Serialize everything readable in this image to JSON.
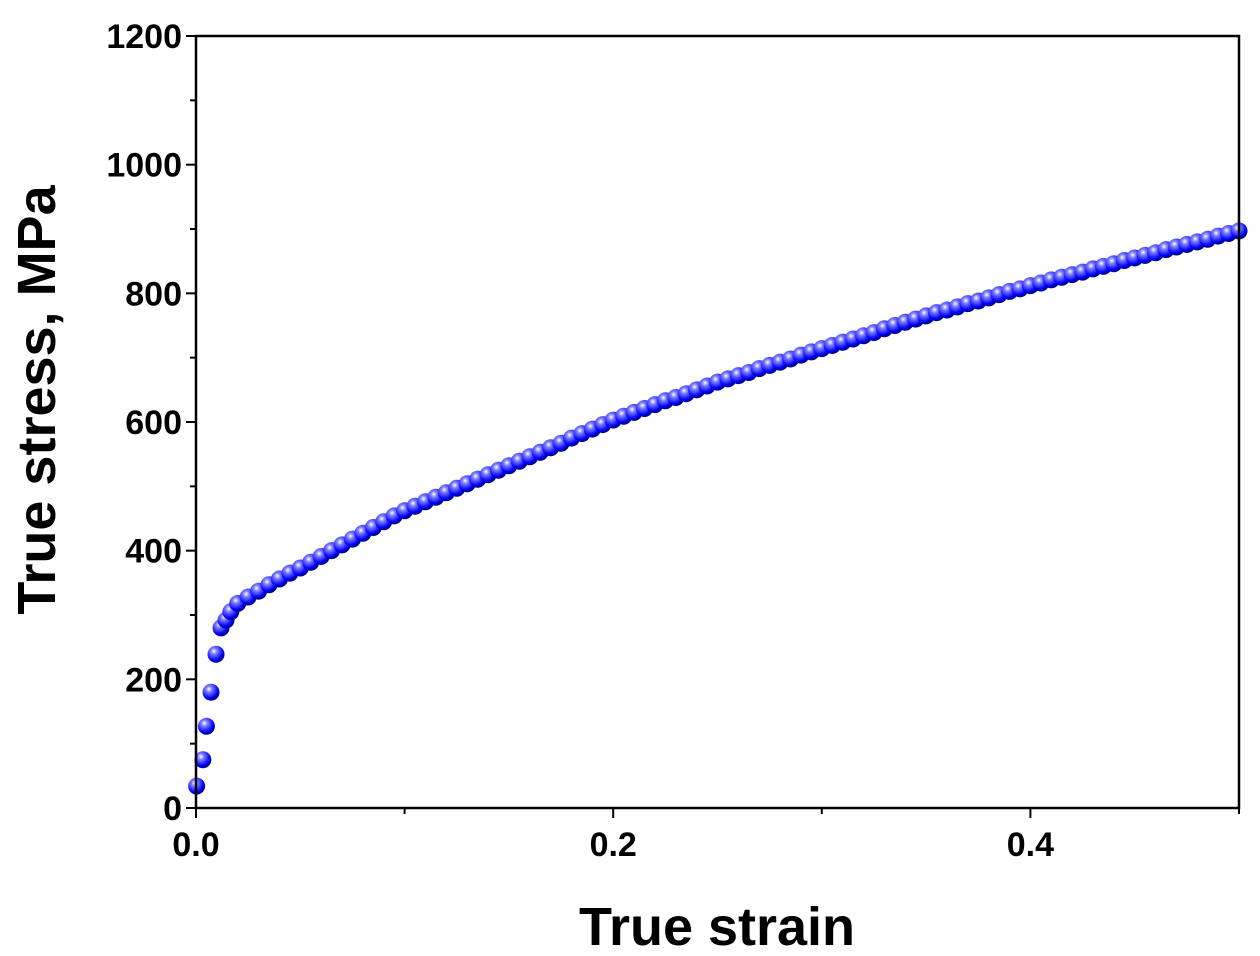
{
  "chart_data": {
    "type": "scatter",
    "xlabel": "True strain",
    "ylabel": "True stress, MPa",
    "xlim": [
      0,
      0.5
    ],
    "ylim": [
      0,
      1200
    ],
    "xticks": [
      {
        "value": 0,
        "label": "0.0"
      },
      0.2,
      0.4
    ],
    "xminorticks": [
      0.1,
      0.3,
      0.5
    ],
    "yticks": [
      0,
      200,
      400,
      600,
      800,
      1000,
      1200
    ],
    "yminorticks": [
      100,
      300,
      500,
      700,
      900,
      1100
    ],
    "series": [
      {
        "color": "#0000ff",
        "x": [
          0.0003,
          0.0033,
          0.005,
          0.0072,
          0.0096,
          0.012,
          0.0144,
          0.0167,
          0.02,
          0.025,
          0.03,
          0.035,
          0.04,
          0.045,
          0.05,
          0.055,
          0.06,
          0.065,
          0.07,
          0.075,
          0.08,
          0.085,
          0.09,
          0.095,
          0.1,
          0.105,
          0.11,
          0.115,
          0.12,
          0.125,
          0.13,
          0.135,
          0.14,
          0.145,
          0.15,
          0.155,
          0.16,
          0.165,
          0.17,
          0.175,
          0.18,
          0.185,
          0.19,
          0.195,
          0.2,
          0.205,
          0.21,
          0.215,
          0.22,
          0.225,
          0.23,
          0.235,
          0.24,
          0.245,
          0.25,
          0.255,
          0.26,
          0.265,
          0.27,
          0.275,
          0.28,
          0.285,
          0.29,
          0.295,
          0.3,
          0.305,
          0.31,
          0.315,
          0.32,
          0.325,
          0.33,
          0.335,
          0.34,
          0.345,
          0.35,
          0.355,
          0.36,
          0.365,
          0.37,
          0.375,
          0.38,
          0.385,
          0.39,
          0.395,
          0.4,
          0.405,
          0.41,
          0.415,
          0.42,
          0.425,
          0.43,
          0.435,
          0.44,
          0.445,
          0.45,
          0.455,
          0.46,
          0.465,
          0.47,
          0.475,
          0.48,
          0.485,
          0.49,
          0.495,
          0.5
        ],
        "values": [
          34,
          75,
          127,
          180,
          239,
          280,
          292,
          305,
          318,
          328,
          337,
          347,
          356,
          365,
          373,
          382,
          391,
          400,
          409,
          418,
          427,
          436,
          445,
          454,
          462,
          469,
          476,
          483,
          490,
          497,
          504,
          511,
          518,
          525,
          532,
          539,
          546,
          553,
          560,
          567,
          575,
          582,
          589,
          596,
          603,
          609,
          615,
          621,
          627,
          633,
          638,
          644,
          650,
          656,
          662,
          667,
          672,
          677,
          683,
          688,
          693,
          698,
          704,
          709,
          714,
          719,
          724,
          729,
          734,
          739,
          745,
          750,
          755,
          760,
          765,
          770,
          774,
          779,
          784,
          788,
          793,
          798,
          803,
          807,
          812,
          816,
          821,
          825,
          829,
          833,
          838,
          842,
          846,
          851,
          855,
          859,
          863,
          868,
          872,
          876,
          880,
          884,
          889,
          893,
          897
        ]
      }
    ]
  }
}
